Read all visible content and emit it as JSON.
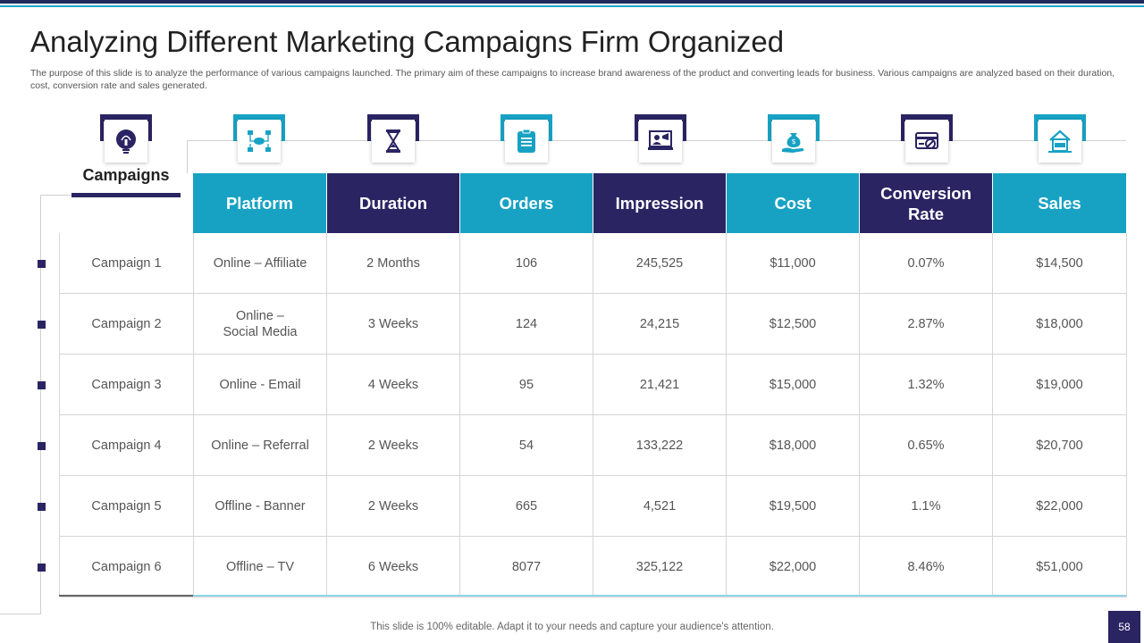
{
  "title": "Analyzing Different Marketing Campaigns Firm Organized",
  "subtitle": "The purpose of this slide is to analyze the performance of various campaigns launched. The primary aim of these campaigns to increase brand awareness of the product and converting leads for business. Various campaigns are analyzed based on their duration, cost, conversion rate and sales generated.",
  "campaigns_label": "Campaigns",
  "icons": [
    "lightbulb-icon",
    "network-icon",
    "hourglass-icon",
    "clipboard-icon",
    "presentation-icon",
    "money-bag-hand-icon",
    "no-fraud-card-icon",
    "house-sale-icon"
  ],
  "headers": [
    "Platform",
    "Duration",
    "Orders",
    "Impression",
    "Cost",
    "Conversion Rate",
    "Sales"
  ],
  "header_conversion": {
    "line1": "Conversion",
    "line2": "Rate"
  },
  "rows": [
    {
      "campaign": "Campaign 1",
      "platform": "Online – Affiliate",
      "platform_l2": "",
      "duration": "2 Months",
      "orders": "106",
      "impression": "245,525",
      "cost": "$11,000",
      "conversion": "0.07%",
      "sales": "$14,500"
    },
    {
      "campaign": "Campaign 2",
      "platform": "Online –",
      "platform_l2": "Social Media",
      "duration": "3 Weeks",
      "orders": "124",
      "impression": "24,215",
      "cost": "$12,500",
      "conversion": "2.87%",
      "sales": "$18,000"
    },
    {
      "campaign": "Campaign 3",
      "platform": "Online - Email",
      "platform_l2": "",
      "duration": "4 Weeks",
      "orders": "95",
      "impression": "21,421",
      "cost": "$15,000",
      "conversion": "1.32%",
      "sales": "$19,000"
    },
    {
      "campaign": "Campaign 4",
      "platform": "Online – Referral",
      "platform_l2": "",
      "duration": "2 Weeks",
      "orders": "54",
      "impression": "133,222",
      "cost": "$18,000",
      "conversion": "0.65%",
      "sales": "$20,700"
    },
    {
      "campaign": "Campaign 5",
      "platform": "Offline - Banner",
      "platform_l2": "",
      "duration": "2 Weeks",
      "orders": "665",
      "impression": "4,521",
      "cost": "$19,500",
      "conversion": "1.1%",
      "sales": "$22,000"
    },
    {
      "campaign": "Campaign 6",
      "platform": "Offline – TV",
      "platform_l2": "",
      "duration": "6 Weeks",
      "orders": "8077",
      "impression": "325,122",
      "cost": "$22,000",
      "conversion": "8.46%",
      "sales": "$51,000"
    }
  ],
  "footer": "This slide is 100% editable. Adapt it to your needs and capture your audience's attention.",
  "page_number": "58",
  "colors": {
    "navy": "#2a2463",
    "teal": "#17a2c4"
  }
}
